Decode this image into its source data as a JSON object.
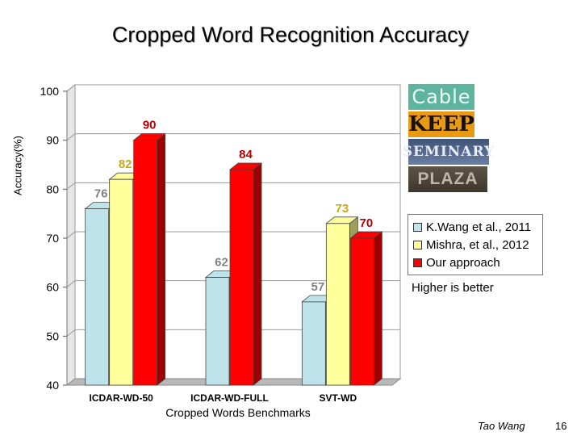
{
  "slide": {
    "author": "Tao Wang",
    "page_number": "16",
    "note": "Higher is better"
  },
  "thumbnails": [
    "Cable",
    "KEEP",
    "SEMINARY",
    "PLAZA"
  ],
  "chart_data": {
    "type": "bar",
    "title": "Cropped Word Recognition Accuracy",
    "xlabel": "Cropped Words Benchmarks",
    "ylabel": "Accuracy(%)",
    "ylim": [
      40,
      100
    ],
    "yticks": [
      40,
      50,
      60,
      70,
      80,
      90,
      100
    ],
    "categories": [
      "ICDAR-WD-50",
      "ICDAR-WD-FULL",
      "SVT-WD"
    ],
    "series": [
      {
        "name": "K.Wang et al., 2011",
        "color": "#bfe3ea",
        "label_color": "#808080",
        "values": [
          76,
          62,
          57
        ]
      },
      {
        "name": "Mishra, et al., 2012",
        "color": "#ffff9c",
        "label_color": "#c9a81a",
        "values": [
          82,
          null,
          73
        ]
      },
      {
        "name": "Our approach",
        "color": "#ff0000",
        "label_color": "#b40000",
        "values": [
          90,
          84,
          70
        ]
      }
    ],
    "grid": true,
    "legend_position": "right"
  }
}
